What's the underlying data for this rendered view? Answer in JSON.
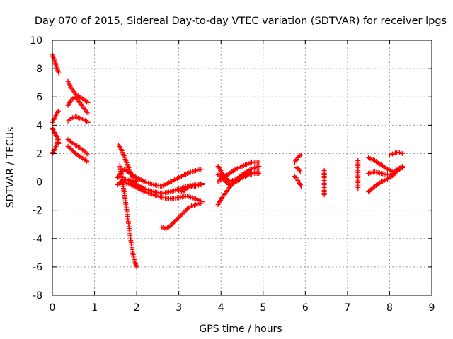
{
  "chart_data": {
    "type": "scatter",
    "title": "Day 070 of 2015, Sidereal Day-to-day VTEC variation (SDTVAR) for receiver lpgs",
    "xlabel": "GPS time / hours",
    "ylabel": "SDTVAR / TECUs",
    "xlim": [
      0,
      9
    ],
    "ylim": [
      -8,
      10
    ],
    "xticks": [
      0,
      1,
      2,
      3,
      4,
      5,
      6,
      7,
      8,
      9
    ],
    "yticks": [
      -8,
      -6,
      -4,
      -2,
      0,
      2,
      4,
      6,
      8,
      10
    ],
    "grid": true,
    "marker": "+",
    "color": "#ff0000",
    "series": [
      {
        "name": "s1",
        "x": [
          0.0,
          0.05,
          0.1,
          0.15
        ],
        "y": [
          9.0,
          8.6,
          8.1,
          7.7
        ]
      },
      {
        "name": "s2",
        "x": [
          0.0,
          0.05,
          0.1,
          0.14
        ],
        "y": [
          4.2,
          4.5,
          4.8,
          5.0
        ]
      },
      {
        "name": "s3",
        "x": [
          0.0,
          0.05,
          0.1,
          0.15
        ],
        "y": [
          3.8,
          3.5,
          3.2,
          2.7
        ]
      },
      {
        "name": "s4",
        "x": [
          0.0,
          0.05,
          0.1,
          0.14
        ],
        "y": [
          2.0,
          2.3,
          2.6,
          3.0
        ]
      },
      {
        "name": "s5",
        "x": [
          0.37,
          0.45,
          0.55,
          0.65,
          0.75,
          0.85
        ],
        "y": [
          7.1,
          6.6,
          6.2,
          6.0,
          5.8,
          5.6
        ]
      },
      {
        "name": "s6",
        "x": [
          0.37,
          0.45,
          0.55,
          0.65,
          0.75,
          0.85
        ],
        "y": [
          5.4,
          5.8,
          6.0,
          5.6,
          5.2,
          4.8
        ]
      },
      {
        "name": "s7",
        "x": [
          0.37,
          0.45,
          0.55,
          0.65,
          0.75,
          0.85
        ],
        "y": [
          4.3,
          4.5,
          4.6,
          4.5,
          4.4,
          4.2
        ]
      },
      {
        "name": "s8",
        "x": [
          0.37,
          0.45,
          0.55,
          0.65,
          0.75,
          0.85
        ],
        "y": [
          3.0,
          2.8,
          2.6,
          2.4,
          2.2,
          1.9
        ]
      },
      {
        "name": "s9",
        "x": [
          0.37,
          0.45,
          0.55,
          0.65,
          0.75,
          0.85
        ],
        "y": [
          2.5,
          2.3,
          2.0,
          1.8,
          1.6,
          1.4
        ]
      },
      {
        "name": "s10",
        "x": [
          1.57,
          1.65,
          1.73,
          1.81,
          1.89,
          1.97,
          2.0
        ],
        "y": [
          2.6,
          2.2,
          1.6,
          1.0,
          0.4,
          0.1,
          0.0
        ]
      },
      {
        "name": "s11",
        "x": [
          1.6,
          1.65,
          1.7,
          1.75,
          1.8,
          1.85,
          1.9,
          1.95,
          2.0
        ],
        "y": [
          1.2,
          0.3,
          -0.7,
          -1.7,
          -2.8,
          -3.9,
          -4.9,
          -5.6,
          -6.0
        ]
      },
      {
        "name": "s12",
        "x": [
          1.55,
          1.7,
          1.85,
          2.0,
          2.2,
          2.4,
          2.6,
          2.8,
          3.0,
          3.2,
          3.4,
          3.55
        ],
        "y": [
          0.3,
          0.9,
          0.6,
          0.3,
          0.0,
          -0.2,
          -0.3,
          0.0,
          0.3,
          0.6,
          0.8,
          0.9
        ]
      },
      {
        "name": "s13",
        "x": [
          1.55,
          1.7,
          1.85,
          2.0,
          2.2,
          2.4,
          2.6,
          2.8,
          3.0,
          3.2,
          3.4,
          3.55
        ],
        "y": [
          -0.2,
          0.2,
          0.1,
          -0.2,
          -0.5,
          -0.7,
          -0.8,
          -0.7,
          -0.5,
          -0.3,
          -0.2,
          -0.1
        ]
      },
      {
        "name": "s14",
        "x": [
          1.6,
          1.8,
          2.0,
          2.2,
          2.4,
          2.6,
          2.8,
          3.0,
          3.2,
          3.4,
          3.55
        ],
        "y": [
          0.0,
          -0.1,
          -0.4,
          -0.7,
          -0.9,
          -1.1,
          -1.2,
          -1.1,
          -1.0,
          -1.2,
          -1.4
        ]
      },
      {
        "name": "s15",
        "x": [
          2.6,
          2.7,
          2.8,
          2.9,
          3.0,
          3.1,
          3.2,
          3.3,
          3.4,
          3.55
        ],
        "y": [
          -3.2,
          -3.3,
          -3.1,
          -2.8,
          -2.5,
          -2.2,
          -1.9,
          -1.7,
          -1.6,
          -1.5
        ]
      },
      {
        "name": "s16",
        "x": [
          3.0,
          3.1,
          3.2,
          3.3,
          3.4,
          3.5,
          3.55
        ],
        "y": [
          -0.6,
          -0.7,
          -0.4,
          -0.3,
          -0.3,
          -0.2,
          -0.2
        ]
      },
      {
        "name": "s17",
        "x": [
          3.93,
          4.05,
          4.2,
          4.35,
          4.5,
          4.65,
          4.8,
          4.9
        ],
        "y": [
          0.0,
          0.3,
          0.6,
          0.9,
          1.1,
          1.3,
          1.4,
          1.4
        ]
      },
      {
        "name": "s18",
        "x": [
          3.93,
          4.05,
          4.2,
          4.35,
          4.5,
          4.65,
          4.8,
          4.9
        ],
        "y": [
          -1.6,
          -1.0,
          -0.4,
          0.1,
          0.5,
          0.8,
          1.0,
          1.1
        ]
      },
      {
        "name": "s19",
        "x": [
          3.93,
          4.05,
          4.2,
          4.35,
          4.5,
          4.65,
          4.8,
          4.9
        ],
        "y": [
          1.1,
          0.5,
          0.0,
          0.2,
          0.4,
          0.6,
          0.7,
          0.7
        ]
      },
      {
        "name": "s20",
        "x": [
          3.93,
          4.05,
          4.2,
          4.35,
          4.5,
          4.65,
          4.8,
          4.9
        ],
        "y": [
          0.5,
          0.2,
          -0.2,
          0.0,
          0.3,
          0.5,
          0.6,
          0.6
        ]
      },
      {
        "name": "s21",
        "x": [
          5.75,
          5.8,
          5.85,
          5.9
        ],
        "y": [
          1.4,
          1.6,
          1.8,
          1.9
        ]
      },
      {
        "name": "s22",
        "x": [
          5.75,
          5.8,
          5.85,
          5.9
        ],
        "y": [
          0.4,
          0.2,
          0.0,
          -0.3
        ]
      },
      {
        "name": "s23",
        "x": [
          5.8,
          5.85,
          5.88
        ],
        "y": [
          1.0,
          0.9,
          0.7
        ]
      },
      {
        "name": "s24",
        "x": [
          6.45,
          6.45,
          6.45,
          6.45,
          6.45,
          6.45
        ],
        "y": [
          0.8,
          0.4,
          0.0,
          -0.3,
          -0.6,
          -0.9
        ]
      },
      {
        "name": "s25",
        "x": [
          7.25,
          7.25,
          7.25
        ],
        "y": [
          1.5,
          0.3,
          -0.5
        ]
      },
      {
        "name": "s26",
        "x": [
          7.5,
          7.65,
          7.8,
          7.95,
          8.1,
          8.2,
          8.3
        ],
        "y": [
          1.7,
          1.5,
          1.2,
          0.9,
          0.7,
          0.9,
          1.1
        ]
      },
      {
        "name": "s27",
        "x": [
          7.5,
          7.65,
          7.8,
          7.95,
          8.1,
          8.2,
          8.3
        ],
        "y": [
          -0.7,
          -0.3,
          0.0,
          0.2,
          0.5,
          0.9,
          1.0
        ]
      },
      {
        "name": "s28",
        "x": [
          7.5,
          7.65,
          7.8,
          7.95,
          8.1,
          8.2,
          8.3
        ],
        "y": [
          0.6,
          0.7,
          0.6,
          0.5,
          0.6,
          0.8,
          1.0
        ]
      },
      {
        "name": "s29",
        "x": [
          8.0,
          8.1,
          8.2,
          8.3
        ],
        "y": [
          1.9,
          2.0,
          2.1,
          2.0
        ]
      }
    ]
  }
}
